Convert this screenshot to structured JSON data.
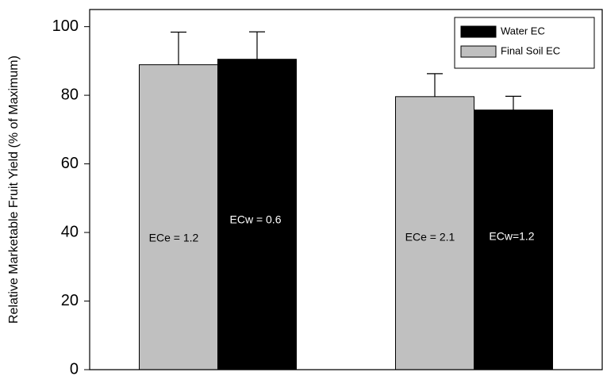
{
  "chart_data": {
    "type": "bar",
    "y_label": "Relative Marketable Fruit Yield (% of Maximum)",
    "categories": [
      null,
      null
    ],
    "series": [
      {
        "name": "Water EC",
        "color": "#000000",
        "values": [
          90.5,
          75.7
        ],
        "error": [
          8,
          4
        ],
        "labels": [
          "ECw = 0.6",
          "ECw=1.2"
        ]
      },
      {
        "name": "Final Soil EC",
        "color": "#c0c0c0",
        "values": [
          88.9,
          79.6
        ],
        "error": [
          9.5,
          6.7
        ],
        "labels": [
          "ECe = 1.2",
          "ECe = 2.1"
        ]
      }
    ],
    "ylim": [
      0,
      105
    ],
    "yticks": [
      0,
      20,
      40,
      60,
      80,
      100
    ],
    "legend": "upper right"
  }
}
